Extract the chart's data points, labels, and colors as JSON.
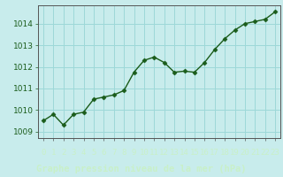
{
  "x": [
    0,
    1,
    2,
    3,
    4,
    5,
    6,
    7,
    8,
    9,
    10,
    11,
    12,
    13,
    14,
    15,
    16,
    17,
    18,
    19,
    20,
    21,
    22,
    23
  ],
  "y": [
    1009.5,
    1009.8,
    1009.3,
    1009.8,
    1009.9,
    1010.5,
    1010.6,
    1010.7,
    1010.9,
    1011.75,
    1012.3,
    1012.45,
    1012.2,
    1011.75,
    1011.8,
    1011.75,
    1012.2,
    1012.8,
    1013.3,
    1013.7,
    1014.0,
    1014.1,
    1014.2,
    1014.55
  ],
  "line_color": "#1a5c1a",
  "marker_color": "#1a5c1a",
  "bg_color": "#c8ecec",
  "grid_color": "#9dd8d8",
  "bottom_bar_color": "#2d6e2d",
  "bottom_text_color": "#c8f0c8",
  "ylabel_ticks": [
    1009,
    1010,
    1011,
    1012,
    1013,
    1014
  ],
  "xlabel_label": "Graphe pression niveau de la mer (hPa)",
  "ylim": [
    1008.7,
    1014.85
  ],
  "xlim": [
    -0.5,
    23.5
  ],
  "xtick_labels": [
    "0",
    "1",
    "2",
    "3",
    "4",
    "5",
    "6",
    "7",
    "8",
    "9",
    "10",
    "11",
    "12",
    "13",
    "14",
    "15",
    "16",
    "17",
    "18",
    "19",
    "20",
    "21",
    "22",
    "23"
  ],
  "tick_fontsize": 6.5,
  "xlabel_fontsize": 7.5,
  "ytick_color": "#1a5c1a",
  "left_spine_color": "#555555"
}
